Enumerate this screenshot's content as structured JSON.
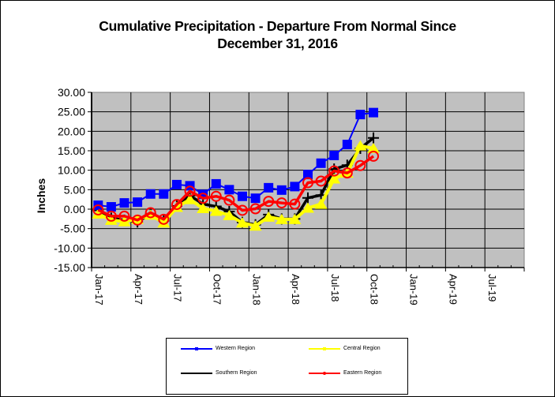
{
  "chart_data": {
    "type": "line",
    "title": "Cumulative Precipitation - Departure From Normal Since December 31, 2016",
    "title_lines": [
      "Cumulative Precipitation - Departure From Normal Since",
      "December 31, 2016"
    ],
    "xlabel": "",
    "ylabel": "Inches",
    "ylim": [
      -15,
      30
    ],
    "yticks": [
      "30.00",
      "25.00",
      "20.00",
      "15.00",
      "10.00",
      "5.00",
      "0.00",
      "-5.00",
      "-10.00",
      "-15.00"
    ],
    "ytick_values": [
      30,
      25,
      20,
      15,
      10,
      5,
      0,
      -5,
      -10,
      -15
    ],
    "xtick_labels": [
      "Jan-17",
      "Apr-17",
      "Jul-17",
      "Oct-17",
      "Jan-18",
      "Apr-18",
      "Jul-18",
      "Oct-18",
      "Jan-19",
      "Apr-19",
      "Jul-19"
    ],
    "x_months_range": [
      0,
      33
    ],
    "x_point_months": [
      0.5,
      1.5,
      2.5,
      3.5,
      4.5,
      5.5,
      6.5,
      7.5,
      8.5,
      9.5,
      10.5,
      11.5,
      12.5,
      13.5,
      14.5,
      15.5,
      16.5,
      17.5,
      18.5,
      19.5,
      20.5,
      21.5
    ],
    "grid": true,
    "legend_position": "bottom",
    "series": [
      {
        "name": "Western Region",
        "color": "#0000FF",
        "marker": "square",
        "values": [
          1.0,
          0.6,
          1.6,
          1.8,
          3.9,
          3.9,
          6.3,
          6.0,
          3.8,
          6.5,
          5.0,
          3.3,
          2.8,
          5.5,
          4.9,
          5.8,
          8.9,
          11.8,
          13.8,
          16.6,
          24.3,
          24.8
        ]
      },
      {
        "name": "Central Region",
        "color": "#FFFF00",
        "marker": "triangle",
        "values": [
          -1.2,
          -2.8,
          -3.2,
          -2.6,
          -1.5,
          -3.5,
          0.5,
          2.5,
          0.2,
          -0.5,
          -1.6,
          -3.5,
          -4.3,
          -2.0,
          -2.6,
          -2.6,
          0.3,
          1.3,
          7.8,
          9.3,
          16.3,
          15.6
        ]
      },
      {
        "name": "Southern Region",
        "color": "#000000",
        "marker": "plus",
        "values": [
          -0.3,
          -2.3,
          -2.8,
          -3.3,
          -1.2,
          -3.0,
          0.8,
          3.5,
          1.3,
          0.7,
          -0.6,
          -3.4,
          -4.0,
          -1.4,
          -2.5,
          -2.5,
          2.9,
          3.6,
          10.3,
          11.3,
          15.6,
          18.3
        ]
      },
      {
        "name": "Eastern Region",
        "color": "#FF0000",
        "marker": "circle",
        "values": [
          -0.2,
          -1.8,
          -1.8,
          -2.8,
          -0.9,
          -2.6,
          1.2,
          4.6,
          2.8,
          3.3,
          2.3,
          -0.3,
          0.1,
          2.0,
          1.6,
          1.3,
          6.8,
          7.2,
          9.8,
          9.3,
          11.2,
          13.6
        ]
      }
    ],
    "draw_order": [
      2,
      1,
      0,
      3
    ]
  },
  "legend": {
    "items": [
      {
        "label": "Western Region",
        "color": "#0000FF"
      },
      {
        "label": "Central Region",
        "color": "#FFFF00"
      },
      {
        "label": "Southern Region",
        "color": "#000000"
      },
      {
        "label": "Eastern Region",
        "color": "#FF0000"
      }
    ]
  }
}
